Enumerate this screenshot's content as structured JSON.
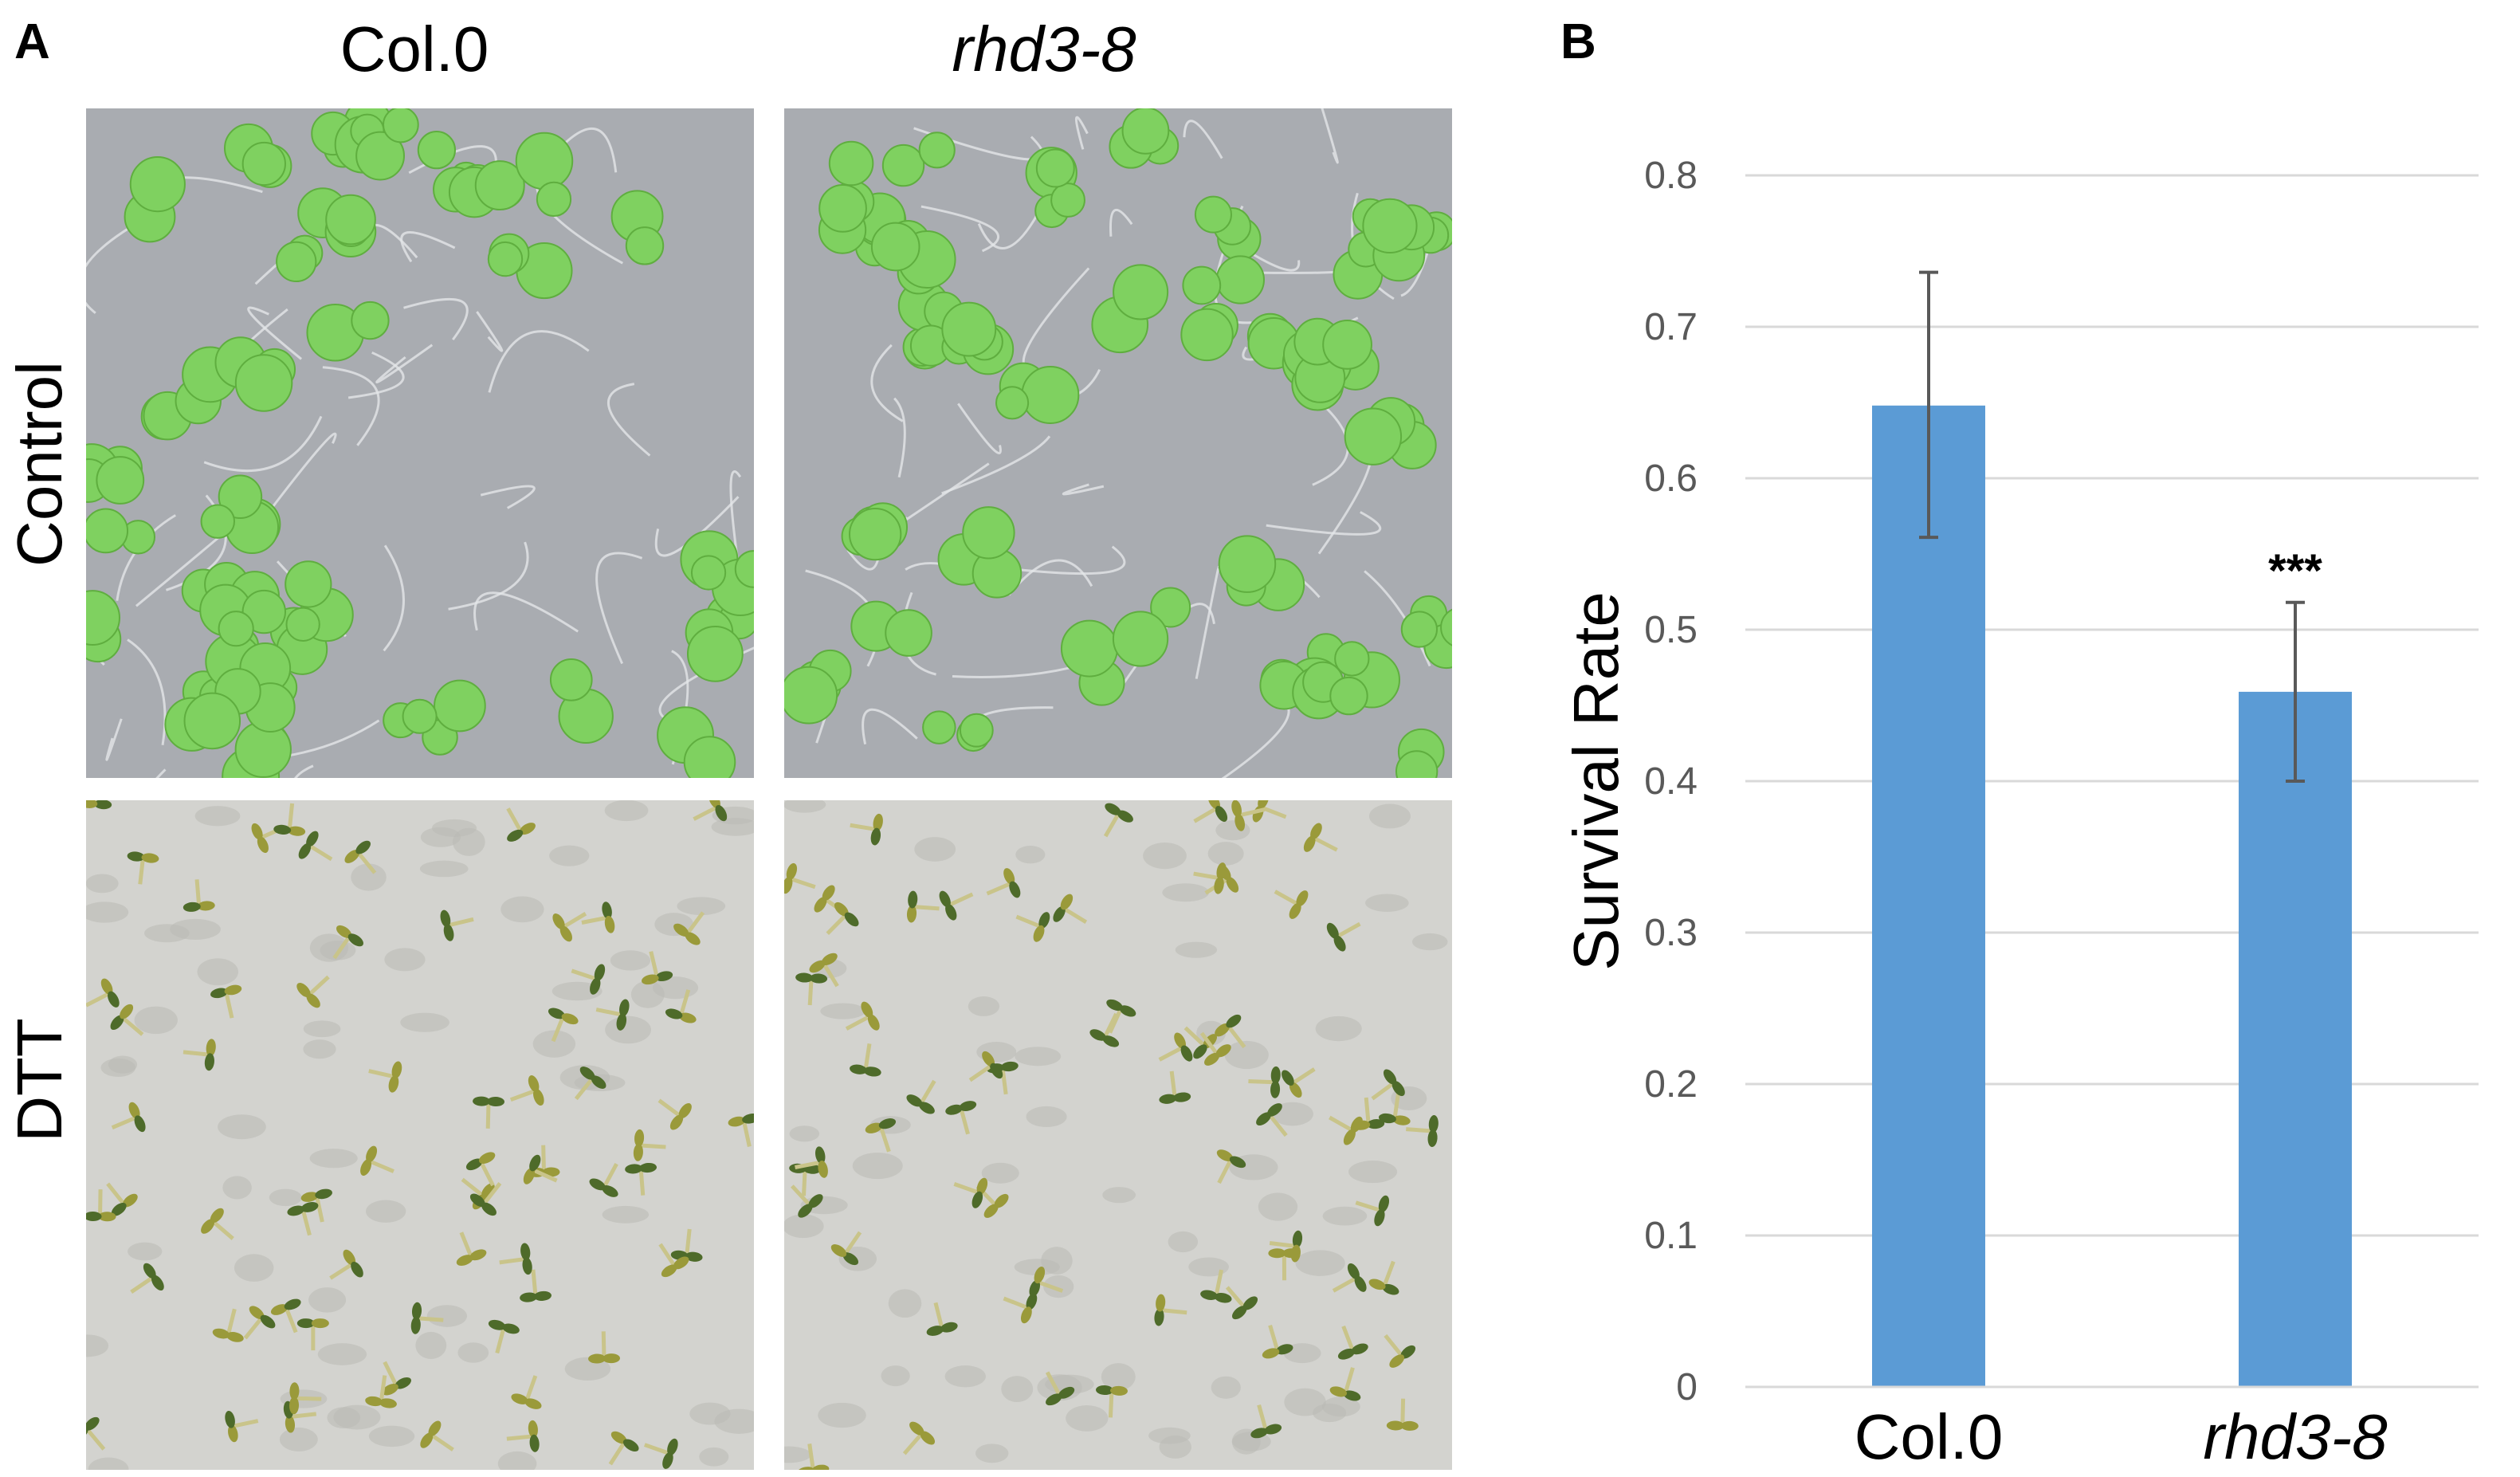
{
  "panel_a": {
    "letter": "A",
    "columns": [
      {
        "label": "Col.0",
        "italic": false
      },
      {
        "label": "rhd3-8",
        "italic": true
      }
    ],
    "rows": [
      "Control",
      "DTT"
    ]
  },
  "panel_b": {
    "letter": "B"
  },
  "colors": {
    "bar": "#5b9bd5",
    "grid": "#d9d9d9",
    "tick_text": "#595959",
    "seedling_green": "#7fd160",
    "seedling_dark": "#4e6b2a"
  },
  "chart_data": {
    "type": "bar",
    "categories": [
      "Col.0",
      "rhd3-8"
    ],
    "category_italic": [
      false,
      true
    ],
    "values": [
      0.648,
      0.459
    ],
    "error_low": [
      0.561,
      0.4
    ],
    "error_high": [
      0.736,
      0.518
    ],
    "annotations": [
      "",
      "***"
    ],
    "ylabel": "Survival Rate",
    "xlabel": "",
    "ylim": [
      0,
      0.8
    ],
    "yticks": [
      "0",
      "0.1",
      "0.2",
      "0.3",
      "0.4",
      "0.5",
      "0.6",
      "0.7",
      "0.8"
    ],
    "grid": true,
    "legend": "none"
  }
}
